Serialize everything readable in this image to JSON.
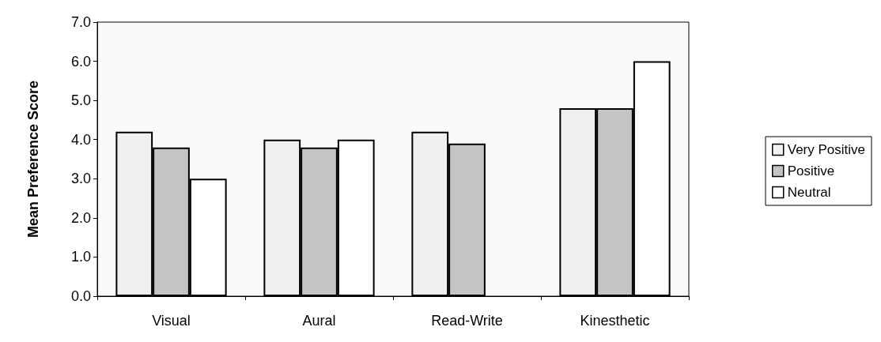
{
  "chart_data": {
    "type": "bar",
    "ylabel": "Mean Preference Score",
    "categories": [
      "Visual",
      "Aural",
      "Read-Write",
      "Kinesthetic"
    ],
    "series": [
      {
        "name": "Very Positive",
        "color": "#f0f0f0",
        "values": [
          4.2,
          4.0,
          4.2,
          4.8
        ]
      },
      {
        "name": "Positive",
        "color": "#c4c4c4",
        "values": [
          3.8,
          3.8,
          3.9,
          4.8
        ]
      },
      {
        "name": "Neutral",
        "color": "#ffffff",
        "values": [
          3.0,
          4.0,
          null,
          6.0
        ]
      }
    ],
    "ylim": [
      0,
      7
    ],
    "yticks": [
      {
        "value": 0,
        "label": "0.0"
      },
      {
        "value": 1,
        "label": "1.0"
      },
      {
        "value": 2,
        "label": "2.0"
      },
      {
        "value": 3,
        "label": "3.0"
      },
      {
        "value": 4,
        "label": "4.0"
      },
      {
        "value": 5,
        "label": "5.0"
      },
      {
        "value": 6,
        "label": "6.0"
      },
      {
        "value": 7,
        "label": "7.0"
      }
    ],
    "grid": false,
    "legend": "right"
  }
}
